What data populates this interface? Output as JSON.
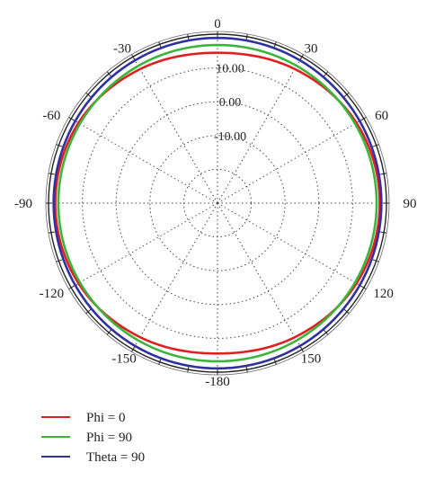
{
  "chart_data": {
    "type": "polar",
    "radial_axis": {
      "range": [
        -30,
        20
      ],
      "ticks": [
        -30,
        -20,
        -10,
        0,
        10,
        20
      ],
      "tick_labels": [
        {
          "value": 10,
          "label": "10.00"
        },
        {
          "value": 0,
          "label": "0.00"
        },
        {
          "value": -10,
          "label": "-10.00"
        }
      ]
    },
    "angular_axis": {
      "direction": "clockwise",
      "zero": "top",
      "ticks": [
        0,
        30,
        60,
        90,
        120,
        150,
        180,
        -150,
        -120,
        -90,
        -60,
        -30
      ],
      "tick_labels": [
        "0",
        "30",
        "60",
        "90",
        "120",
        "150",
        "-180",
        "-150",
        "-120",
        "-90",
        "-60",
        "-30"
      ]
    },
    "grid": true,
    "legend_position": "bottom-left",
    "series": [
      {
        "name": "Phi = 0",
        "color": "#e02020",
        "theta": [
          0,
          30,
          60,
          90,
          120,
          150,
          180,
          210,
          240,
          270,
          300,
          330
        ],
        "r": [
          14.5,
          15.8,
          17.5,
          18.0,
          17.5,
          15.8,
          14.5,
          15.8,
          17.5,
          18.0,
          17.5,
          15.8
        ]
      },
      {
        "name": "Phi = 90",
        "color": "#3cb43c",
        "theta": [
          0,
          30,
          60,
          90,
          120,
          150,
          180,
          210,
          240,
          270,
          300,
          330
        ],
        "r": [
          16.8,
          16.9,
          17.0,
          17.1,
          17.0,
          16.9,
          16.8,
          16.9,
          17.0,
          17.1,
          17.0,
          16.9
        ]
      },
      {
        "name": "Theta = 90",
        "color": "#3030a0",
        "theta": [
          0,
          30,
          60,
          90,
          120,
          150,
          180,
          210,
          240,
          270,
          300,
          330
        ],
        "r": [
          18.9,
          18.8,
          18.6,
          18.5,
          18.6,
          18.8,
          18.9,
          18.8,
          18.6,
          18.5,
          18.6,
          18.8
        ]
      }
    ]
  }
}
